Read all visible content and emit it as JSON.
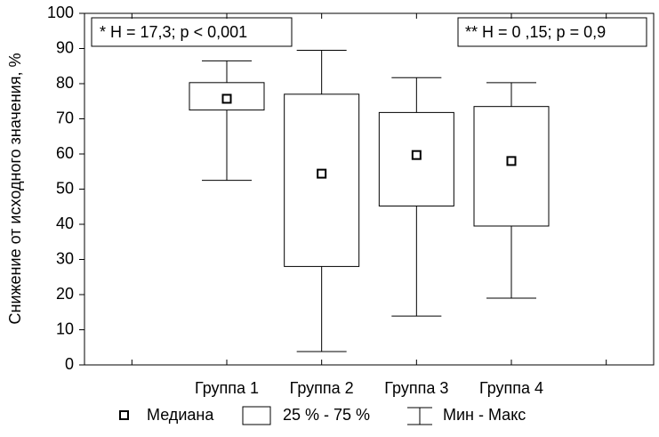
{
  "chart_data": {
    "type": "box",
    "y_label": "Снижение от исходного значения, %",
    "categories": [
      null,
      "Группа 1",
      "Группа 2",
      "Группа 3",
      "Группа 4",
      null
    ],
    "min": [
      null,
      52.5,
      3.8,
      13.9,
      19,
      null
    ],
    "q1": [
      null,
      72.5,
      28,
      45.2,
      39.5,
      null
    ],
    "median": [
      null,
      75.7,
      54.4,
      59.7,
      58,
      null
    ],
    "q3": [
      null,
      80.3,
      77,
      71.8,
      73.5,
      null
    ],
    "max": [
      null,
      86.5,
      89.5,
      81.7,
      80.3,
      null
    ],
    "ylim": [
      0,
      100
    ],
    "yticks": [
      0,
      10,
      20,
      30,
      40,
      50,
      60,
      70,
      80,
      90,
      100
    ],
    "annotations": [
      "* H = 17,3; p < 0,001",
      "** H = 0 ,15; p = 0,9"
    ],
    "legend": [
      "Медиана",
      "25 % - 75 %",
      "Мин - Макс"
    ],
    "color": "#000000"
  }
}
